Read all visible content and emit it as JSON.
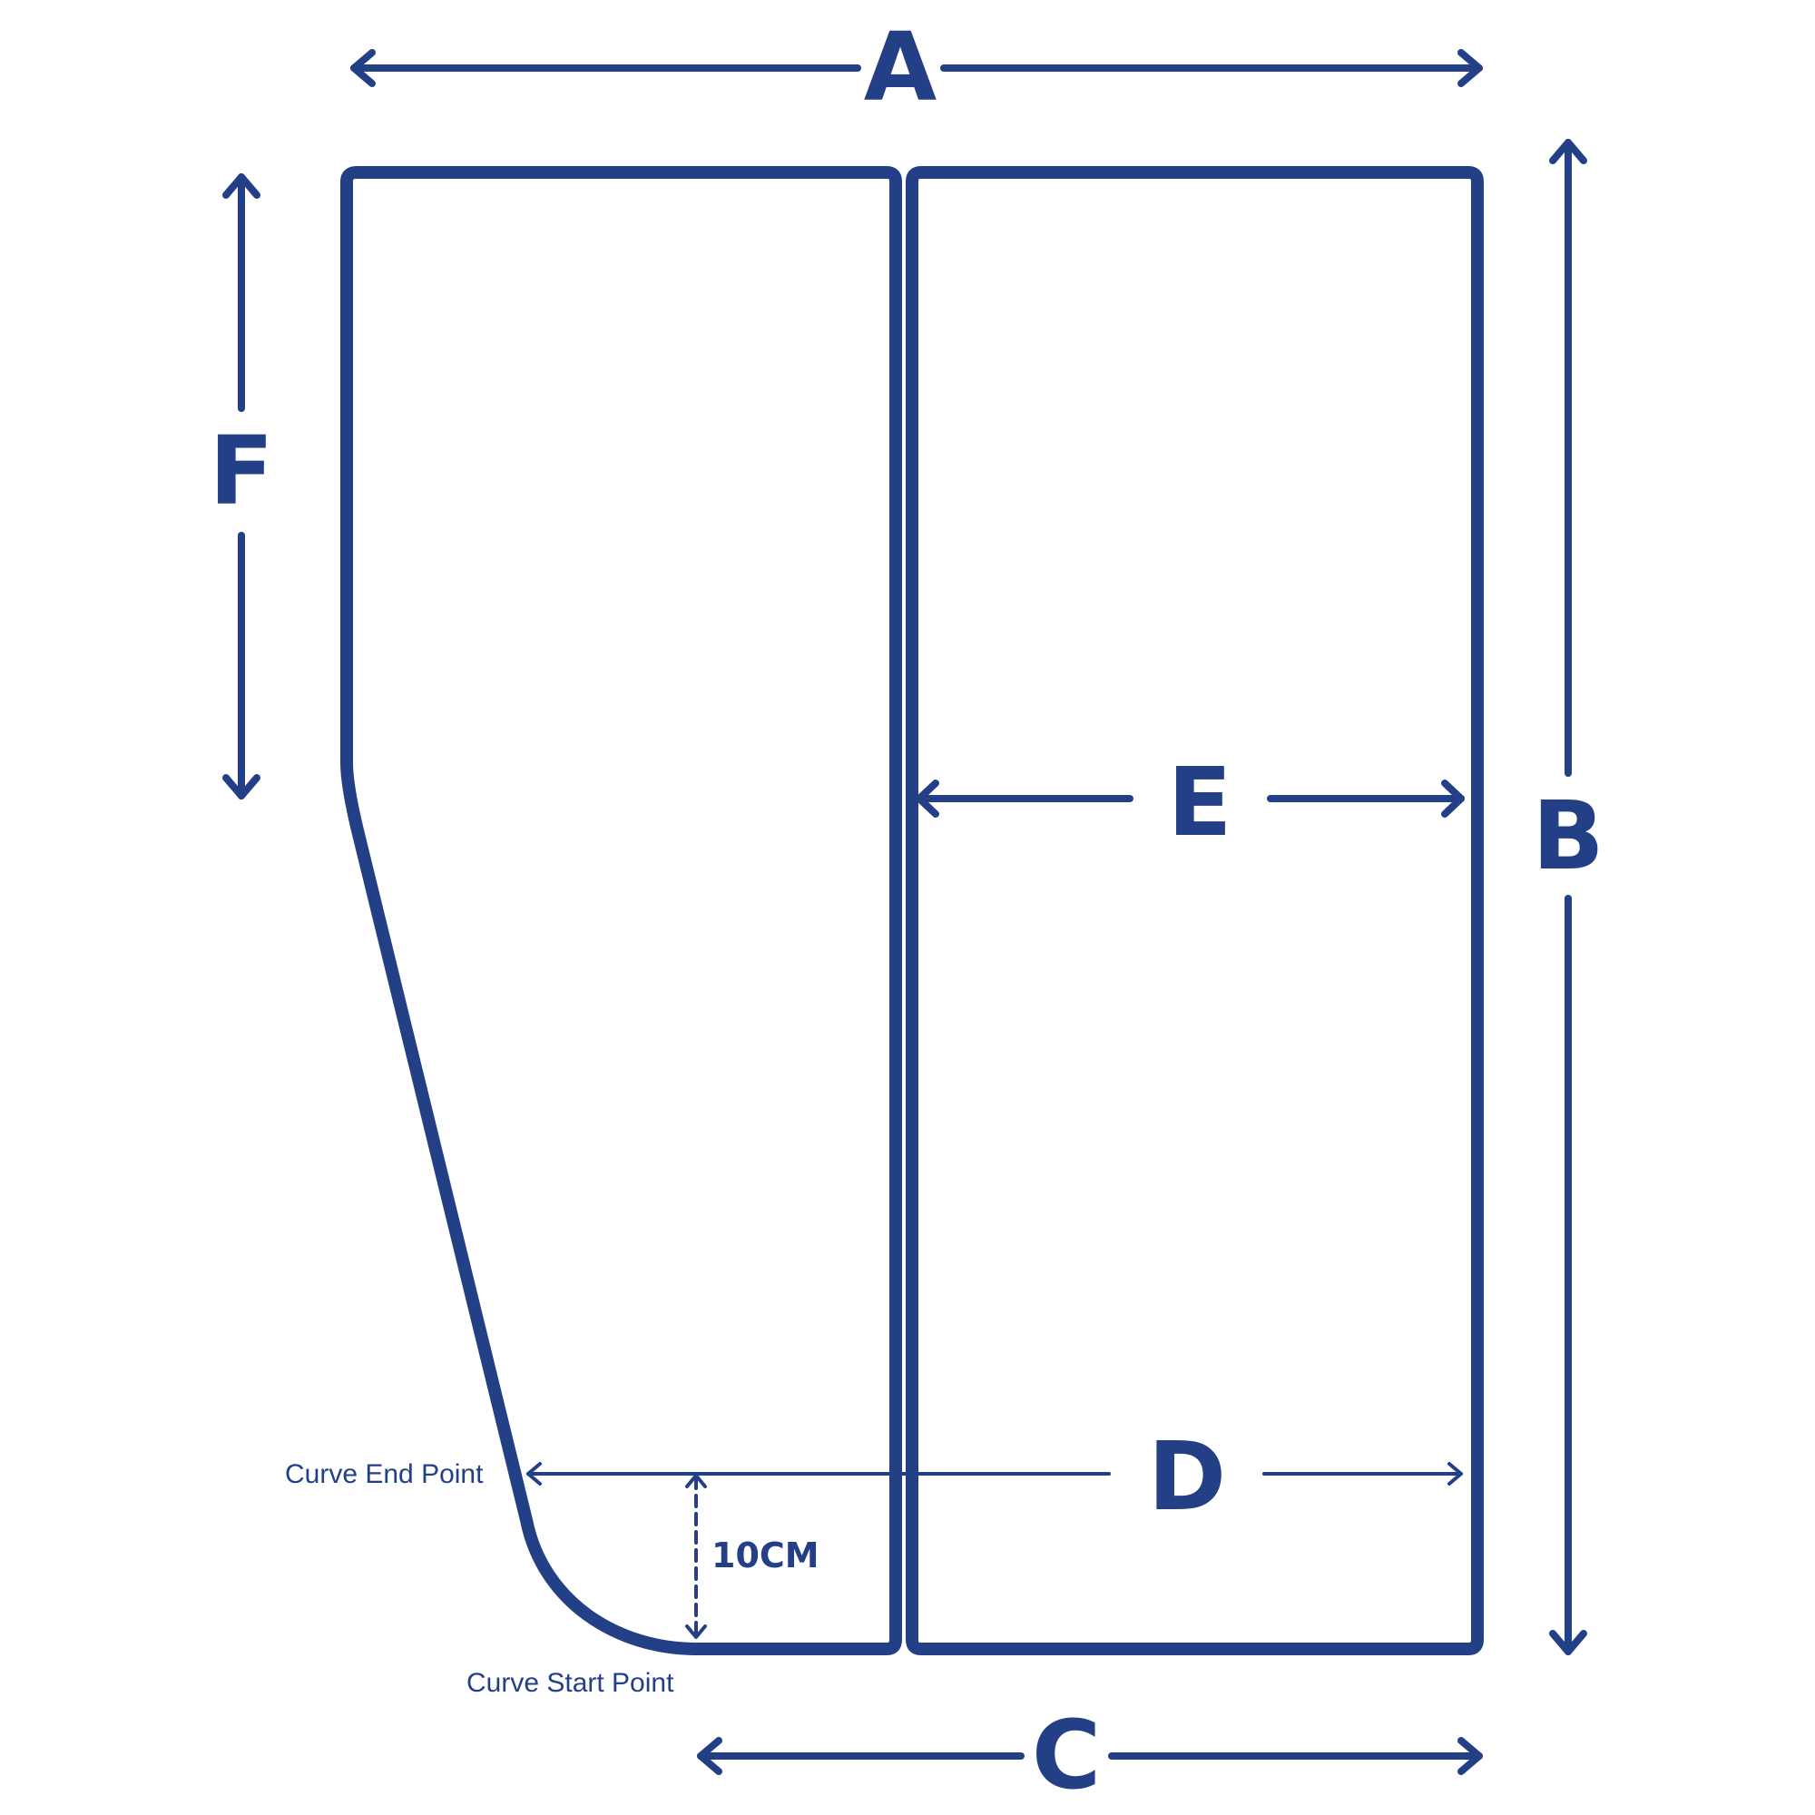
{
  "colors": {
    "stroke": "#233f85",
    "background": "#ffffff"
  },
  "labels": {
    "a": "A",
    "b": "B",
    "c": "C",
    "d": "D",
    "e": "E",
    "f": "F",
    "measure": "10CM",
    "curve_end": "Curve End Point",
    "curve_start": "Curve Start Point"
  }
}
